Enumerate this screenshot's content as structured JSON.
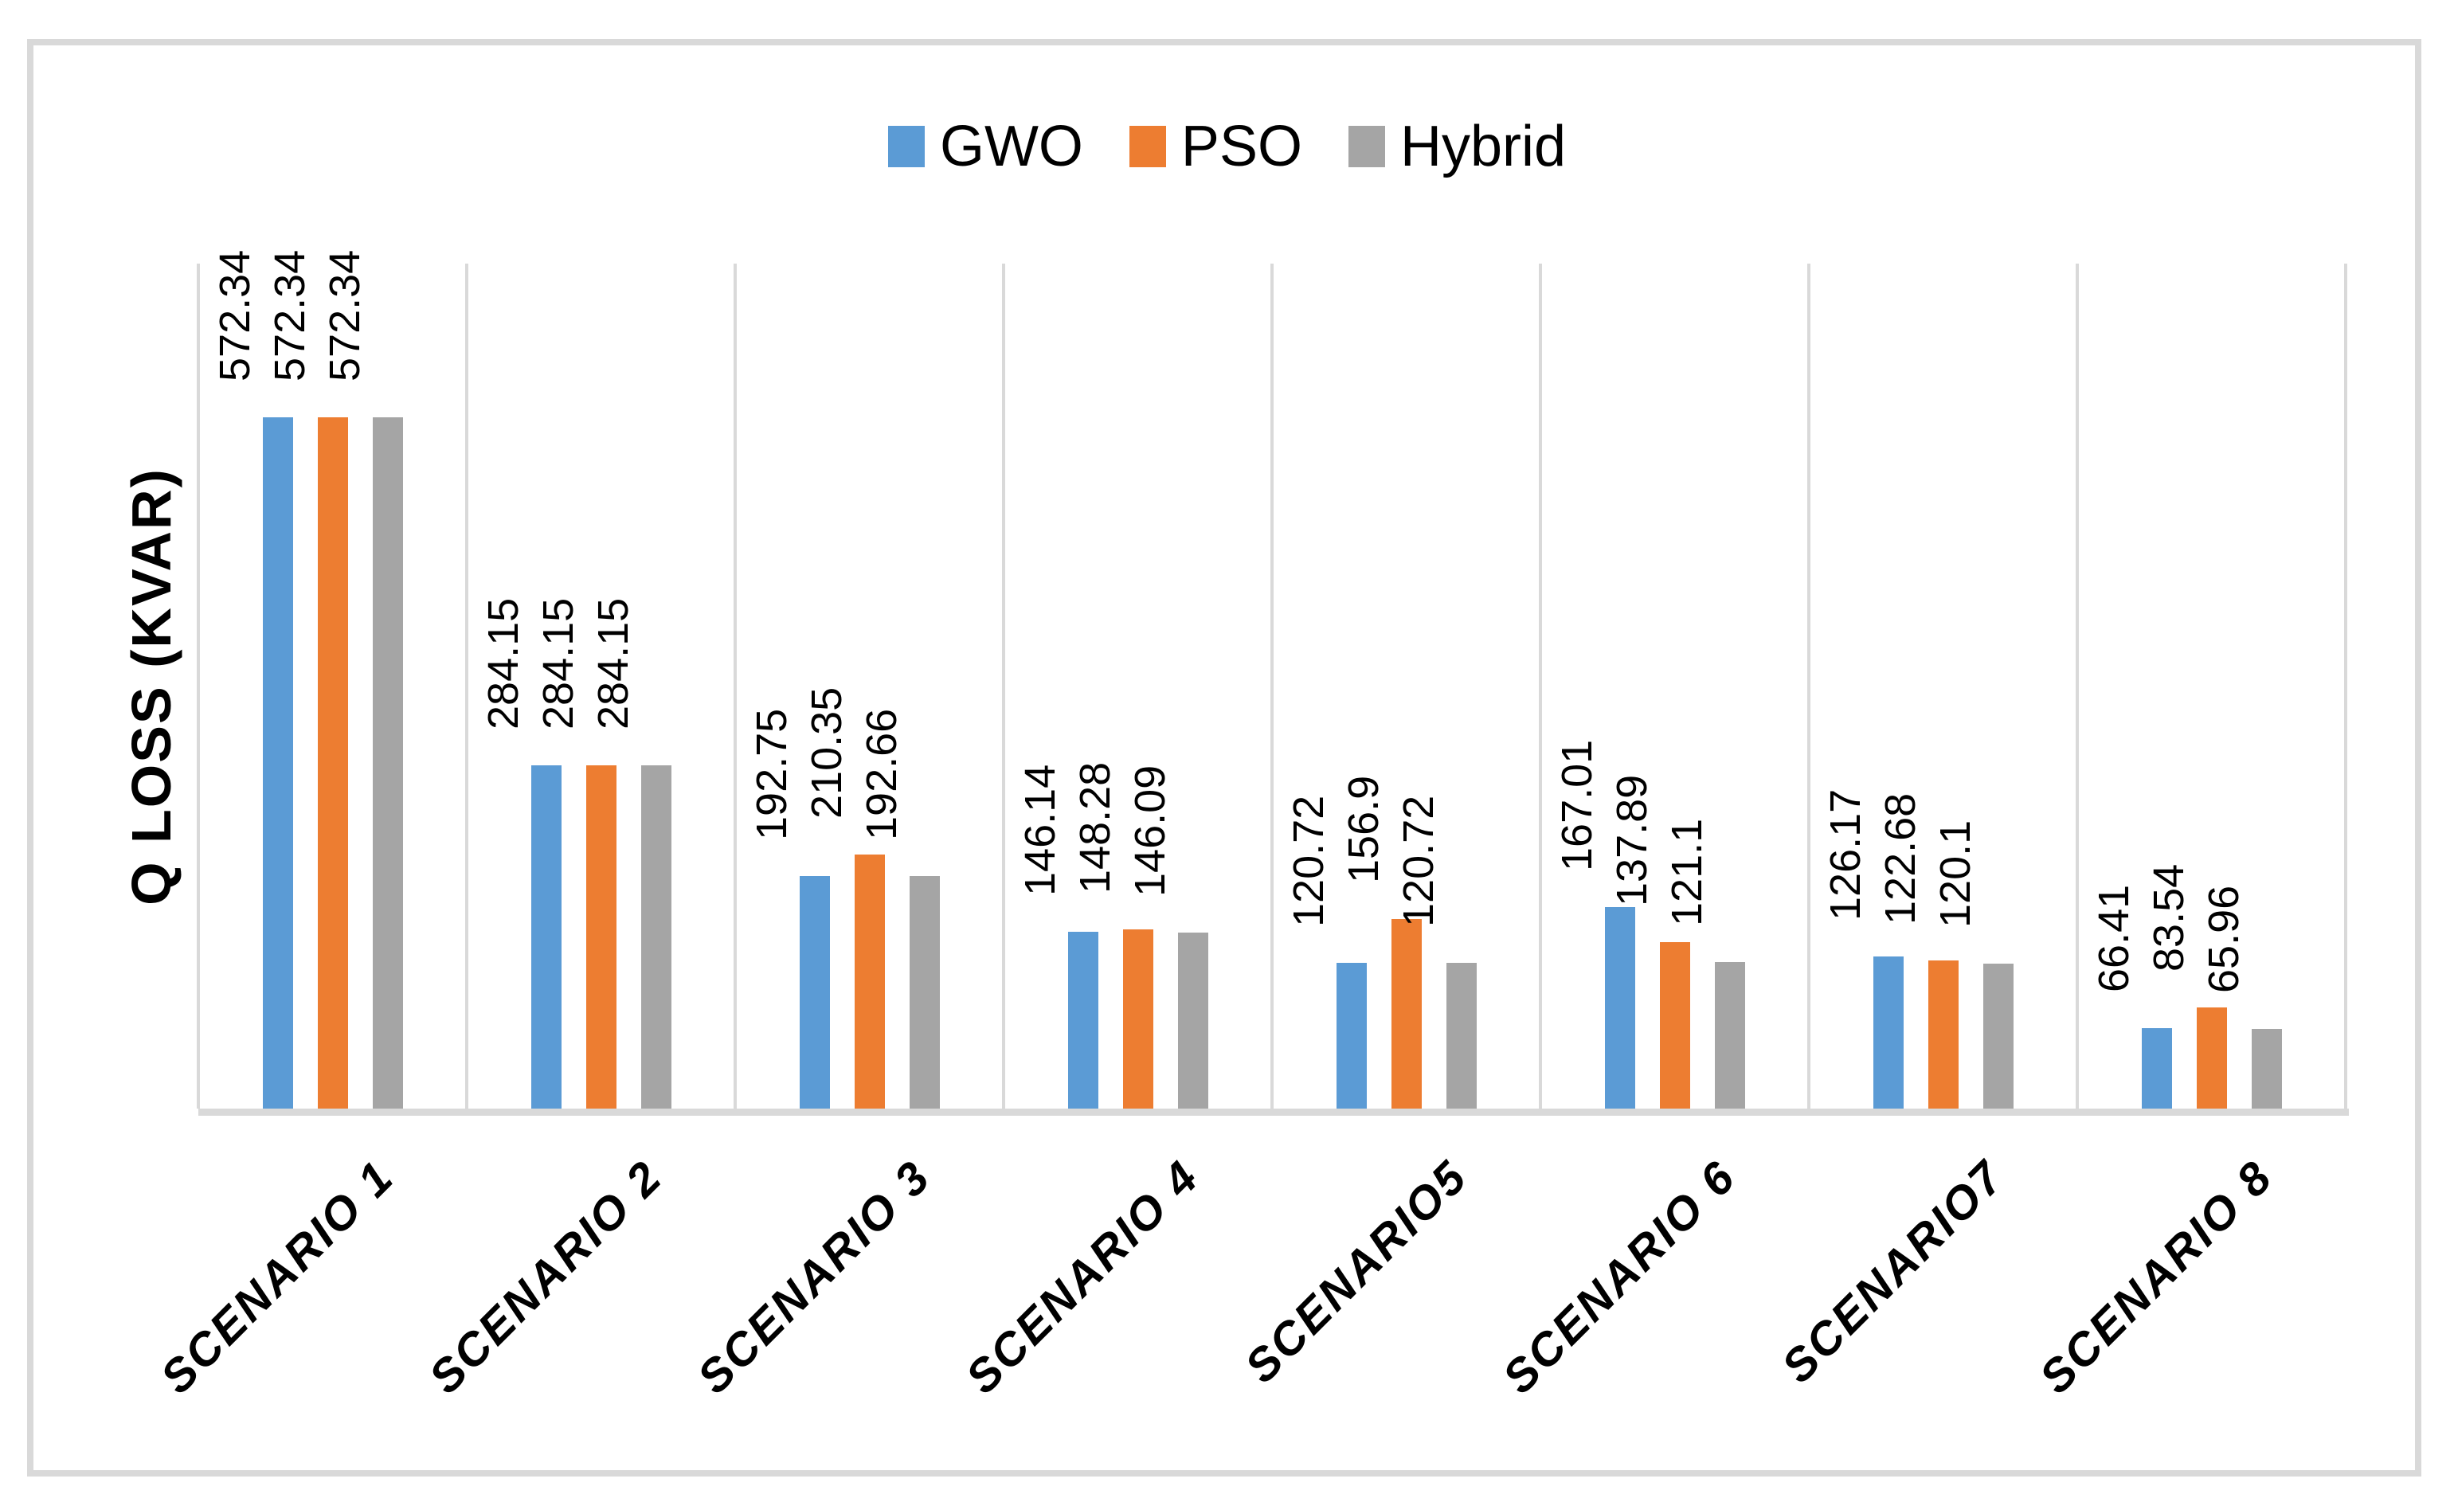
{
  "figure": {
    "background": "#FFFFFF",
    "border_color": "#D9D9D9",
    "gridline_color": "#D9D9D9",
    "axis_line_color": "#D9D9D9",
    "text_color": "#000000"
  },
  "chart_data": {
    "type": "bar",
    "title": "",
    "xlabel": "",
    "ylabel": "Q LOSS (KVAR)",
    "categories": [
      "SCENARIO 1",
      "SCENARIO 2",
      "SCENARIO 3",
      "SCENARIO 4",
      "SCENARIO5",
      "SCENARIO 6",
      "SCENARIO7",
      "SCENARIO 8"
    ],
    "series": [
      {
        "name": "GWO",
        "color": "#5B9BD5",
        "values": [
          572.34,
          284.15,
          192.75,
          146.14,
          120.72,
          167.01,
          126.17,
          66.41
        ]
      },
      {
        "name": "PSO",
        "color": "#ED7D31",
        "values": [
          572.34,
          284.15,
          210.35,
          148.28,
          156.9,
          137.89,
          122.68,
          83.54
        ]
      },
      {
        "name": "Hybrid",
        "color": "#A5A5A5",
        "values": [
          572.34,
          284.15,
          192.66,
          146.09,
          120.72,
          121.1,
          120.1,
          65.96
        ]
      }
    ],
    "ylim": [
      0,
      700
    ],
    "y_axis_tick_labels": "none",
    "grid": {
      "vertical_category_boundaries": true,
      "horizontal": false
    },
    "legend_position": "top-center",
    "data_label_rotation": 90,
    "category_label_rotation": 45
  }
}
